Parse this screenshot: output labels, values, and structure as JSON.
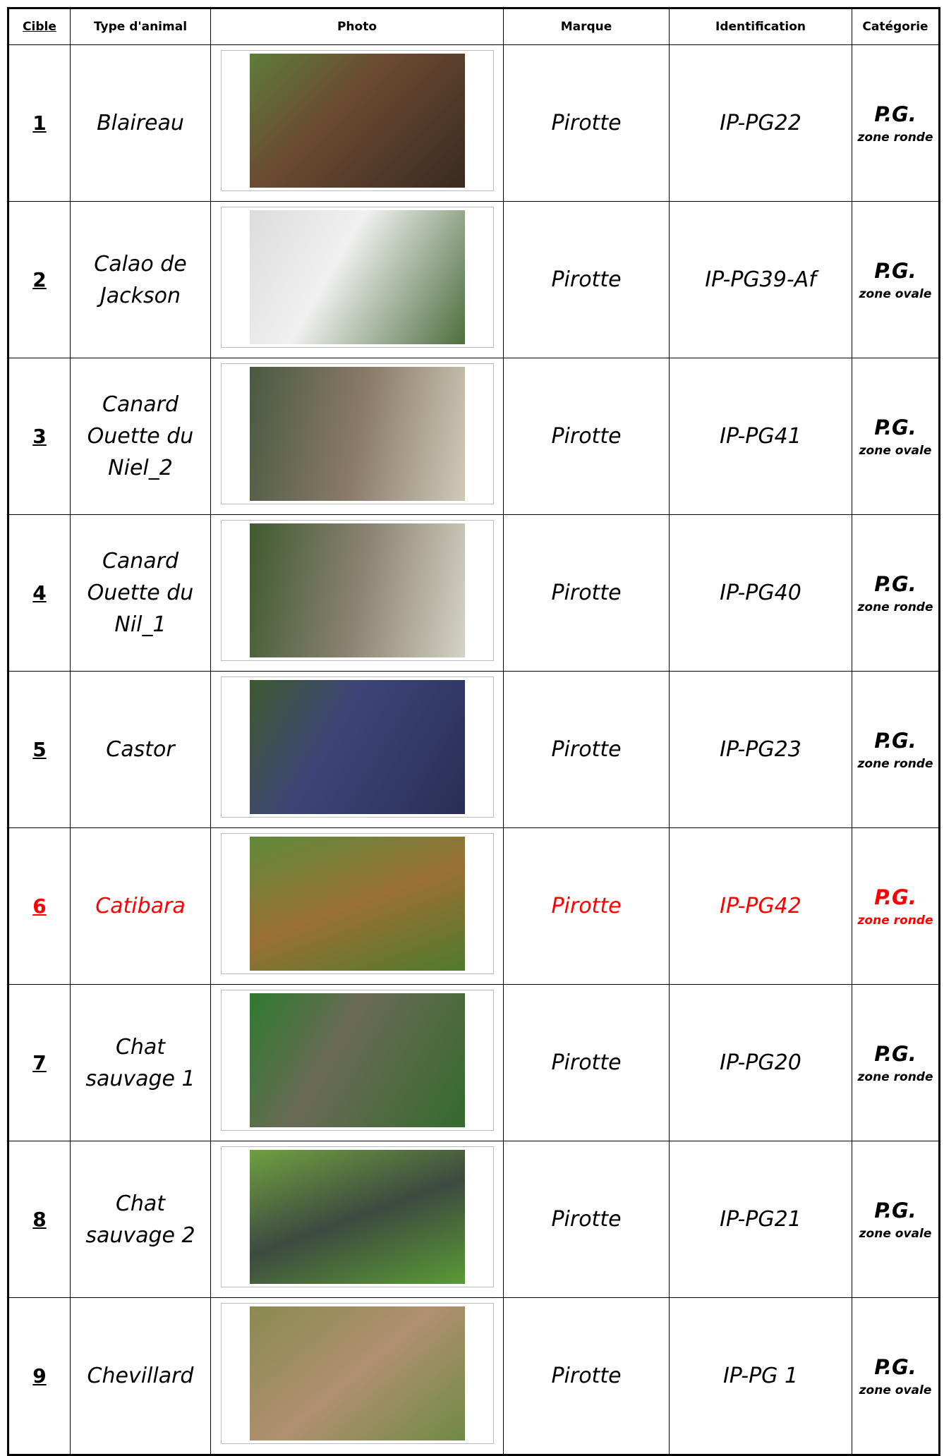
{
  "table": {
    "header": [
      "Cible",
      "Type d'animal",
      "Photo",
      "Marque",
      "Identification",
      "Catégorie"
    ],
    "rows": [
      {
        "cible": "1",
        "type": "Blaireau",
        "marque": "Pirotte",
        "identification": "IP-PG22",
        "categorie": "P.G.",
        "zone": "zone ronde"
      },
      {
        "cible": "2",
        "type": "Calao de Jackson",
        "marque": "Pirotte",
        "identification": "IP-PG39-Af",
        "categorie": "P.G.",
        "zone": "zone ovale"
      },
      {
        "cible": "3",
        "type": "Canard Ouette du Niel_2",
        "marque": "Pirotte",
        "identification": "IP-PG41",
        "categorie": "P.G.",
        "zone": "zone ovale"
      },
      {
        "cible": "4",
        "type": "Canard Ouette du Nil_1",
        "marque": "Pirotte",
        "identification": "IP-PG40",
        "categorie": "P.G.",
        "zone": "zone ronde"
      },
      {
        "cible": "5",
        "type": "Castor",
        "marque": "Pirotte",
        "identification": "IP-PG23",
        "categorie": "P.G.",
        "zone": "zone ronde"
      },
      {
        "cible": "6",
        "type": "Catibara",
        "marque": "Pirotte",
        "identification": "IP-PG42",
        "categorie": "P.G.",
        "zone": "zone ronde",
        "color": "#ff0000"
      },
      {
        "cible": "7",
        "type": "Chat sauvage 1",
        "marque": "Pirotte",
        "identification": "IP-PG20",
        "categorie": "P.G.",
        "zone": "zone ronde"
      },
      {
        "cible": "8",
        "type": "Chat sauvage 2",
        "marque": "Pirotte",
        "identification": "IP-PG21",
        "categorie": "P.G.",
        "zone": "zone ovale"
      },
      {
        "cible": "9",
        "type": "Chevillard",
        "marque": "Pirotte",
        "identification": "IP-PG 1",
        "categorie": "P.G.",
        "zone": "zone ovale"
      }
    ]
  }
}
